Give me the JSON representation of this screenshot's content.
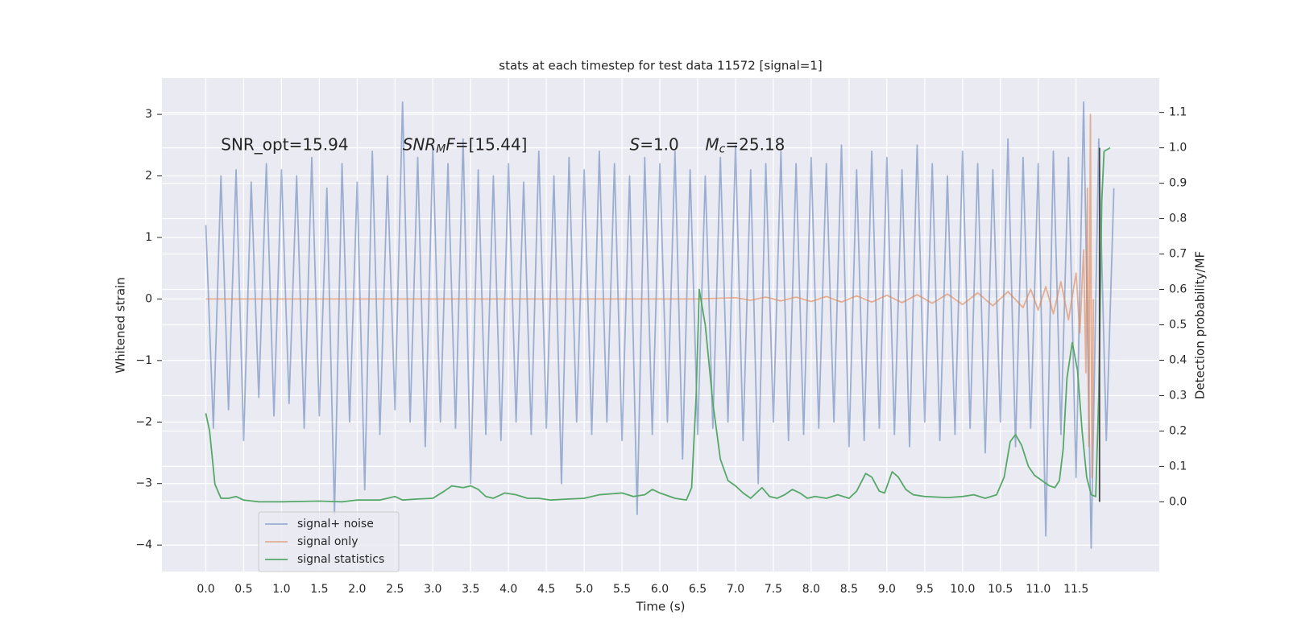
{
  "chart_data": {
    "type": "line",
    "title": "stats at each timestep for test data 11572 [signal=1]",
    "x_label": "Time (s)",
    "y_label": "Whitened strain",
    "y2_label": "Detection probability/MF",
    "grid": true,
    "legend": "lower left",
    "xlim": [
      -0.58,
      12.6
    ],
    "ylim": [
      -4.43,
      3.59
    ],
    "y2lim": [
      -0.197,
      1.197
    ],
    "xticks": [
      {
        "value": 0,
        "label": "0.0"
      },
      0.5,
      {
        "value": 1,
        "label": "1.0"
      },
      1.5,
      {
        "value": 2,
        "label": "2.0"
      },
      2.5,
      {
        "value": 3,
        "label": "3.0"
      },
      3.5,
      {
        "value": 4,
        "label": "4.0"
      },
      4.5,
      {
        "value": 5,
        "label": "5.0"
      },
      5.5,
      {
        "value": 6,
        "label": "6.0"
      },
      6.5,
      {
        "value": 7,
        "label": "7.0"
      },
      7.5,
      {
        "value": 8,
        "label": "8.0"
      },
      8.5,
      {
        "value": 9,
        "label": "9.0"
      },
      9.5,
      {
        "value": 10,
        "label": "10.0"
      },
      10.5,
      {
        "value": 11,
        "label": "11.0"
      },
      11.5
    ],
    "yticks": [
      {
        "value": -4,
        "label": "−4"
      },
      {
        "value": -3,
        "label": "−3"
      },
      {
        "value": -2,
        "label": "−2"
      },
      {
        "value": -1,
        "label": "−1"
      },
      0,
      1,
      2,
      3
    ],
    "y2ticks": [
      {
        "value": 0,
        "label": "0.0"
      },
      0.1,
      0.2,
      0.3,
      0.4,
      0.5,
      0.6,
      0.7,
      0.8,
      0.9,
      {
        "value": 1,
        "label": "1.0"
      },
      1.1
    ],
    "annotations": [
      {
        "parts": [
          {
            "text": "SNR_opt=15.94"
          }
        ]
      },
      {
        "parts": [
          {
            "text": "SNR",
            "italic": true
          },
          {
            "text": "M",
            "italic": true,
            "sub": true
          },
          {
            "text": "F",
            "italic": true
          },
          {
            "text": "=[15.44]"
          }
        ]
      },
      {
        "parts": [
          {
            "text": "S",
            "italic": true
          },
          {
            "text": "=1.0"
          }
        ]
      },
      {
        "parts": [
          {
            "text": "M",
            "italic": true
          },
          {
            "text": "c",
            "italic": true,
            "sub": true
          },
          {
            "text": "=25.18"
          }
        ]
      }
    ],
    "series": [
      {
        "name": "signal+ noise",
        "color": "#4c72b0",
        "opacity": 0.5,
        "x": [
          0,
          0.1,
          0.2,
          0.3,
          0.4,
          0.5,
          0.6,
          0.7,
          0.8,
          0.9,
          1.0,
          1.1,
          1.2,
          1.3,
          1.4,
          1.5,
          1.6,
          1.7,
          1.8,
          1.9,
          2.0,
          2.1,
          2.2,
          2.3,
          2.4,
          2.5,
          2.6,
          2.7,
          2.8,
          2.9,
          3.0,
          3.1,
          3.2,
          3.3,
          3.4,
          3.5,
          3.6,
          3.7,
          3.8,
          3.9,
          4.0,
          4.1,
          4.2,
          4.3,
          4.4,
          4.5,
          4.6,
          4.7,
          4.8,
          4.9,
          5.0,
          5.1,
          5.2,
          5.3,
          5.4,
          5.5,
          5.6,
          5.7,
          5.8,
          5.9,
          6.0,
          6.1,
          6.2,
          6.3,
          6.4,
          6.5,
          6.6,
          6.7,
          6.8,
          6.9,
          7.0,
          7.1,
          7.2,
          7.3,
          7.4,
          7.5,
          7.6,
          7.7,
          7.8,
          7.9,
          8.0,
          8.1,
          8.2,
          8.3,
          8.4,
          8.5,
          8.6,
          8.7,
          8.8,
          8.9,
          9.0,
          9.1,
          9.2,
          9.3,
          9.4,
          9.5,
          9.6,
          9.7,
          9.8,
          9.9,
          10.0,
          10.1,
          10.2,
          10.3,
          10.4,
          10.5,
          10.6,
          10.7,
          10.8,
          10.9,
          11.0,
          11.1,
          11.2,
          11.3,
          11.4,
          11.5,
          11.6,
          11.7,
          11.8,
          11.9,
          12.0
        ],
        "values": [
          1.2,
          -2.1,
          2.0,
          -1.8,
          2.1,
          -2.3,
          1.9,
          -1.6,
          2.2,
          -1.9,
          2.1,
          -1.7,
          2.0,
          -2.1,
          2.3,
          -1.9,
          1.8,
          -3.5,
          2.2,
          -2.0,
          1.9,
          -3.1,
          2.4,
          -2.2,
          2.0,
          -1.8,
          3.2,
          -2.0,
          2.3,
          -2.4,
          2.5,
          -2.0,
          2.2,
          -2.1,
          2.6,
          -3.0,
          2.1,
          -2.2,
          2.0,
          -2.3,
          2.2,
          -2.0,
          1.9,
          -2.2,
          2.4,
          -2.1,
          2.0,
          -3.0,
          2.3,
          -2.0,
          2.1,
          -2.2,
          2.4,
          -2.0,
          2.2,
          -2.3,
          2.0,
          -3.5,
          2.3,
          -2.2,
          2.2,
          -2.0,
          2.4,
          -2.6,
          2.1,
          -2.2,
          2.0,
          -2.1,
          2.3,
          -2.0,
          2.5,
          -2.3,
          2.1,
          -3.0,
          2.2,
          -2.0,
          2.4,
          -2.3,
          2.2,
          -2.2,
          2.3,
          -2.1,
          2.2,
          -2.0,
          2.5,
          -2.4,
          2.1,
          -2.3,
          2.4,
          -2.1,
          2.3,
          -2.2,
          2.1,
          -2.4,
          2.5,
          -2.0,
          2.2,
          -2.3,
          2.0,
          -2.2,
          2.4,
          -2.1,
          2.2,
          -2.5,
          2.1,
          -2.0,
          2.6,
          -2.4,
          2.3,
          -2.1,
          2.2,
          -3.85,
          2.4,
          -2.2,
          2.3,
          -2.9,
          3.2,
          -4.05,
          2.6,
          -2.3,
          1.8
        ]
      },
      {
        "name": "signal only",
        "color": "#dd8452",
        "opacity": 0.6,
        "x": [
          0,
          6.5,
          7.0,
          7.2,
          7.4,
          7.6,
          7.8,
          8.0,
          8.2,
          8.4,
          8.6,
          8.8,
          9.0,
          9.2,
          9.4,
          9.6,
          9.8,
          10.0,
          10.2,
          10.4,
          10.6,
          10.8,
          10.9,
          11.0,
          11.1,
          11.2,
          11.3,
          11.4,
          11.5,
          11.55,
          11.6,
          11.63,
          11.65,
          11.67,
          11.69,
          11.71,
          11.73
        ],
        "values": [
          0,
          0,
          0.02,
          -0.02,
          0.03,
          -0.03,
          0.03,
          -0.04,
          0.04,
          -0.05,
          0.05,
          -0.05,
          0.06,
          -0.06,
          0.07,
          -0.07,
          0.08,
          -0.09,
          0.1,
          -0.11,
          0.12,
          -0.14,
          0.16,
          -0.18,
          0.2,
          -0.24,
          0.28,
          -0.34,
          0.42,
          -0.55,
          0.8,
          -1.2,
          1.8,
          -2.4,
          3.0,
          -2.9,
          0
        ]
      },
      {
        "name": "signal statistics",
        "color": "#55a868",
        "opacity": 1,
        "axis": "y2",
        "x": [
          0,
          0.05,
          0.12,
          0.2,
          0.3,
          0.4,
          0.5,
          0.7,
          1.0,
          1.5,
          1.8,
          2.0,
          2.3,
          2.4,
          2.5,
          2.6,
          2.8,
          3.0,
          3.15,
          3.25,
          3.4,
          3.5,
          3.6,
          3.7,
          3.8,
          3.95,
          4.1,
          4.25,
          4.4,
          4.55,
          4.8,
          5.0,
          5.2,
          5.5,
          5.65,
          5.8,
          5.9,
          6.0,
          6.2,
          6.35,
          6.42,
          6.48,
          6.52,
          6.6,
          6.7,
          6.8,
          6.9,
          7.0,
          7.1,
          7.2,
          7.35,
          7.45,
          7.55,
          7.65,
          7.75,
          7.85,
          7.95,
          8.05,
          8.2,
          8.35,
          8.5,
          8.6,
          8.72,
          8.8,
          8.9,
          8.97,
          9.07,
          9.15,
          9.25,
          9.35,
          9.5,
          9.8,
          10.0,
          10.15,
          10.3,
          10.45,
          10.55,
          10.63,
          10.7,
          10.78,
          10.87,
          10.95,
          11.05,
          11.15,
          11.22,
          11.28,
          11.33,
          11.38,
          11.45,
          11.52,
          11.58,
          11.64,
          11.7,
          11.76,
          11.8,
          11.84,
          11.87,
          11.95
        ],
        "values": [
          0.25,
          0.2,
          0.05,
          0.01,
          0.01,
          0.015,
          0.005,
          0,
          0,
          0.002,
          0,
          0.005,
          0.005,
          0.01,
          0.015,
          0.005,
          0.008,
          0.01,
          0.03,
          0.045,
          0.04,
          0.045,
          0.035,
          0.015,
          0.01,
          0.025,
          0.02,
          0.01,
          0.01,
          0.005,
          0.008,
          0.01,
          0.02,
          0.025,
          0.015,
          0.02,
          0.035,
          0.025,
          0.01,
          0.005,
          0.04,
          0.3,
          0.6,
          0.5,
          0.28,
          0.12,
          0.06,
          0.045,
          0.025,
          0.01,
          0.04,
          0.015,
          0.01,
          0.02,
          0.035,
          0.025,
          0.01,
          0.015,
          0.01,
          0.02,
          0.01,
          0.03,
          0.08,
          0.07,
          0.03,
          0.025,
          0.085,
          0.07,
          0.035,
          0.02,
          0.015,
          0.012,
          0.015,
          0.02,
          0.01,
          0.02,
          0.07,
          0.17,
          0.19,
          0.16,
          0.1,
          0.075,
          0.06,
          0.045,
          0.04,
          0.06,
          0.15,
          0.35,
          0.45,
          0.37,
          0.2,
          0.07,
          0.02,
          0.015,
          0.3,
          0.85,
          0.99,
          1.0
        ]
      }
    ],
    "extra_lines": [
      {
        "x": [
          11.81,
          11.81
        ],
        "values": [
          0,
          1.0
        ],
        "axis": "y2",
        "color": "#444444"
      }
    ]
  }
}
